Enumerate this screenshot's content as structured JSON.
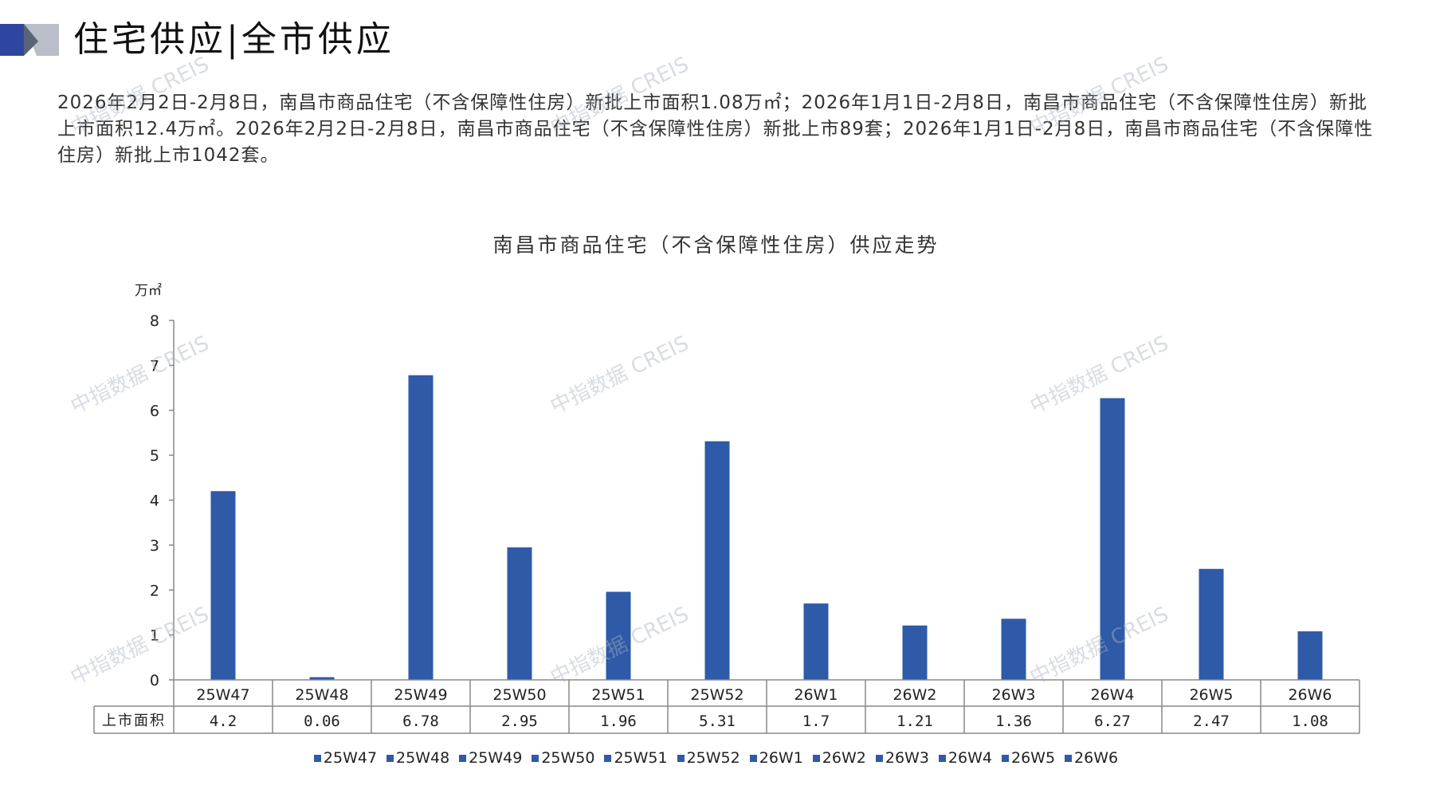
{
  "header": {
    "title": "住宅供应|全市供应"
  },
  "summary": {
    "text": "2026年2月2日-2月8日，南昌市商品住宅（不含保障性住房）新批上市面积1.08万㎡；2026年1月1日-2月8日，南昌市商品住宅（不含保障性住房）新批上市面积12.4万㎡。2026年2月2日-2月8日，南昌市商品住宅（不含保障性住房）新批上市89套；2026年1月1日-2月8日，南昌市商品住宅（不含保障性住房）新批上市1042套。"
  },
  "watermark": {
    "text": "中指数据 CREIS"
  },
  "colors": {
    "bar": "#2e5aa8",
    "axis": "#888888",
    "table_border": "#888888"
  },
  "chart_data": {
    "type": "bar",
    "title": "南昌市商品住宅（不含保障性住房）供应走势",
    "ylabel": "万㎡",
    "ylim": [
      0,
      8
    ],
    "yticks": [
      0,
      1,
      2,
      3,
      4,
      5,
      6,
      7,
      8
    ],
    "categories": [
      "25W47",
      "25W48",
      "25W49",
      "25W50",
      "25W51",
      "25W52",
      "26W1",
      "26W2",
      "26W3",
      "26W4",
      "26W5",
      "26W6"
    ],
    "values": [
      4.2,
      0.06,
      6.78,
      2.95,
      1.96,
      5.31,
      1.7,
      1.21,
      1.36,
      6.27,
      2.47,
      1.08
    ],
    "value_labels": [
      "4.2",
      "0.06",
      "6.78",
      "2.95",
      "1.96",
      "5.31",
      "1.7",
      "1.21",
      "1.36",
      "6.27",
      "2.47",
      "1.08"
    ],
    "table_row_label": "上市面积",
    "legend": [
      "25W47",
      "25W48",
      "25W49",
      "25W50",
      "25W51",
      "25W52",
      "26W1",
      "26W2",
      "26W3",
      "26W4",
      "26W5",
      "26W6"
    ],
    "legend_position": "bottom",
    "grid": false
  }
}
